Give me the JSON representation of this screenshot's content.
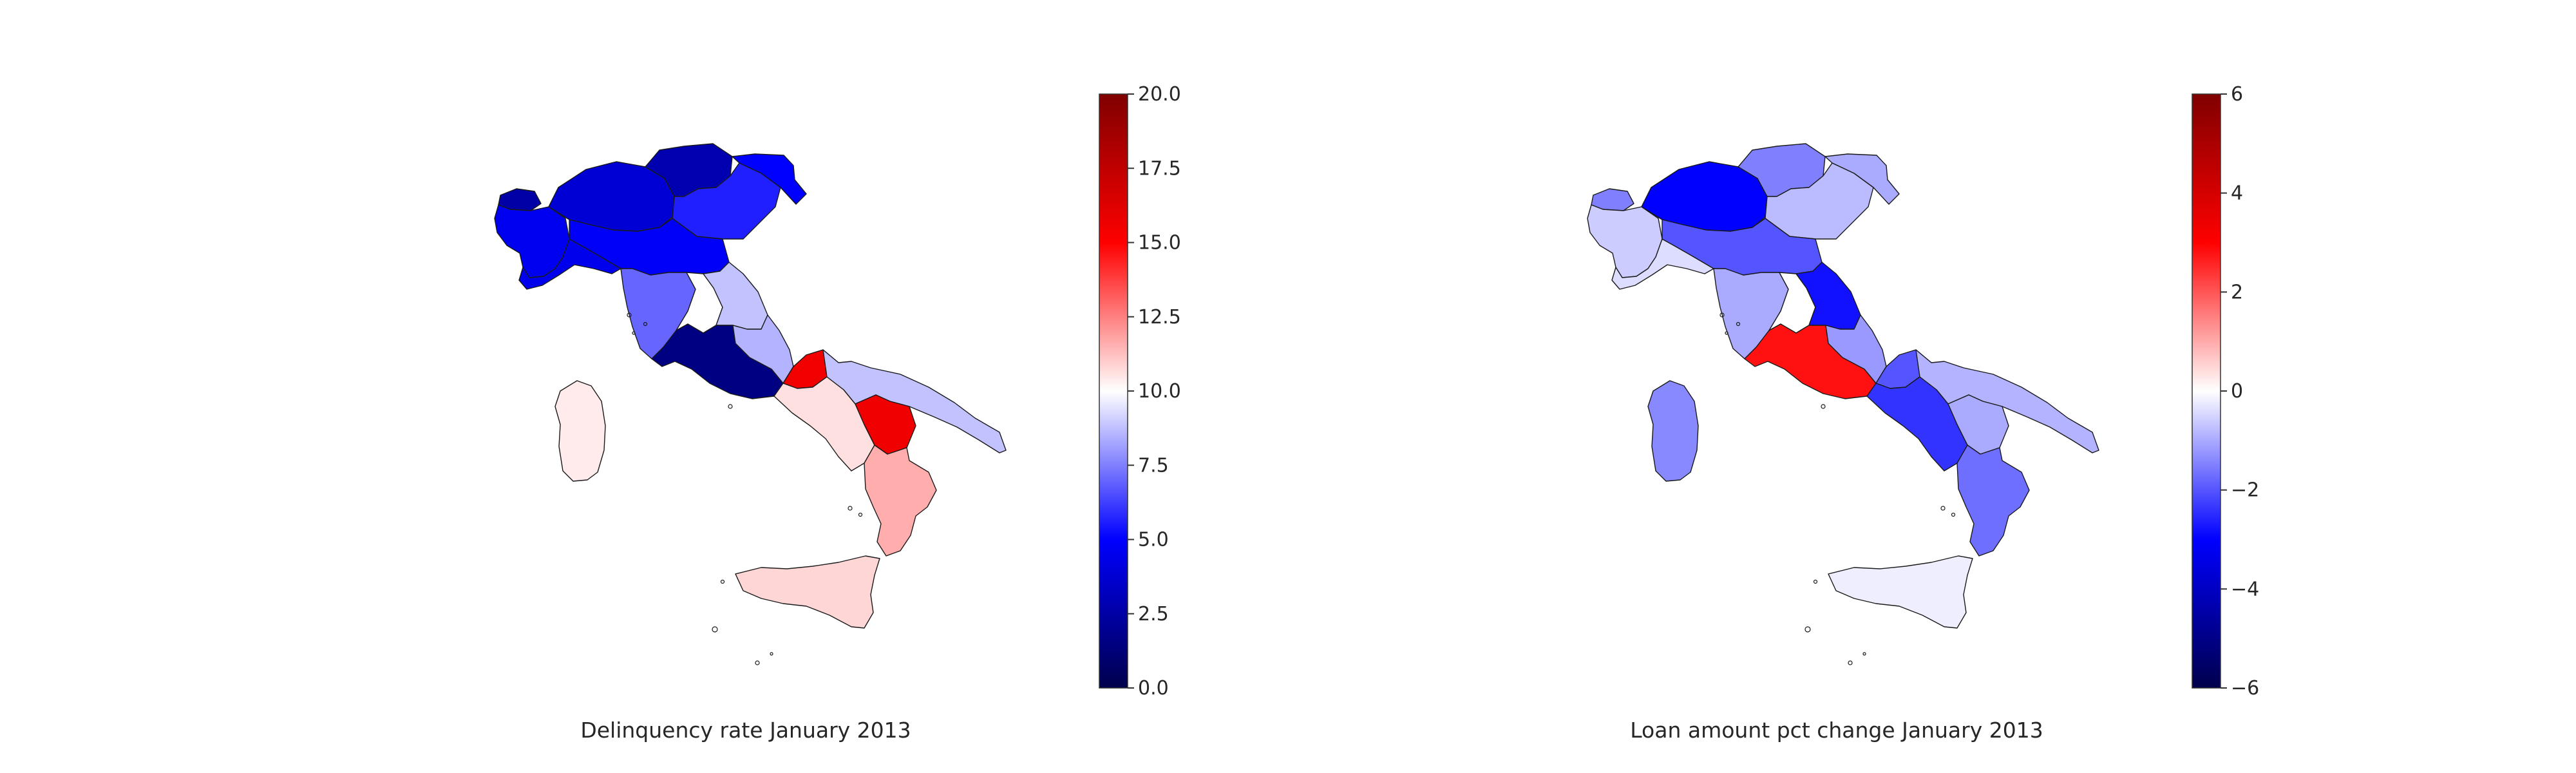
{
  "chart_data": [
    {
      "type": "choropleth",
      "title": "Delinquency rate January 2013",
      "colormap": "seismic",
      "colorbar": {
        "min": 0,
        "max": 20,
        "ticks": [
          0.0,
          2.5,
          5.0,
          7.5,
          10.0,
          12.5,
          15.0,
          17.5,
          20.0
        ],
        "tick_labels": [
          "0.0",
          "2.5",
          "5.0",
          "7.5",
          "10.0",
          "12.5",
          "15.0",
          "17.5",
          "20.0"
        ]
      },
      "regions": [
        {
          "name": "Valle d'Aosta",
          "value": 2.5
        },
        {
          "name": "Piemonte",
          "value": 4.6
        },
        {
          "name": "Lombardia",
          "value": 3.8
        },
        {
          "name": "Trentino-Alto Adige",
          "value": 2.8
        },
        {
          "name": "Veneto",
          "value": 5.6
        },
        {
          "name": "Friuli-Venezia Giulia",
          "value": 5.0
        },
        {
          "name": "Liguria",
          "value": 4.5
        },
        {
          "name": "Emilia-Romagna",
          "value": 4.8
        },
        {
          "name": "Toscana",
          "value": 7.0
        },
        {
          "name": "Umbria",
          "value": 10.0
        },
        {
          "name": "Marche",
          "value": 8.8
        },
        {
          "name": "Lazio",
          "value": 1.5
        },
        {
          "name": "Abruzzo",
          "value": 8.5
        },
        {
          "name": "Molise",
          "value": 15.5
        },
        {
          "name": "Campania",
          "value": 10.6
        },
        {
          "name": "Puglia",
          "value": 8.8
        },
        {
          "name": "Basilicata",
          "value": 15.6
        },
        {
          "name": "Calabria",
          "value": 11.6
        },
        {
          "name": "Sicilia",
          "value": 10.8
        },
        {
          "name": "Sardegna",
          "value": 10.4
        }
      ]
    },
    {
      "type": "choropleth",
      "title": "Loan amount pct change January 2013",
      "colormap": "seismic",
      "colorbar": {
        "min": -6,
        "max": 6,
        "ticks": [
          -6,
          -4,
          -2,
          0,
          2,
          4,
          6
        ],
        "tick_labels": [
          "−6",
          "−4",
          "−2",
          "0",
          "2",
          "4",
          "6"
        ]
      },
      "regions": [
        {
          "name": "Valle d'Aosta",
          "value": -1.5
        },
        {
          "name": "Piemonte",
          "value": -0.6
        },
        {
          "name": "Lombardia",
          "value": -3.0
        },
        {
          "name": "Trentino-Alto Adige",
          "value": -1.5
        },
        {
          "name": "Veneto",
          "value": -0.8
        },
        {
          "name": "Friuli-Venezia Giulia",
          "value": -1.0
        },
        {
          "name": "Liguria",
          "value": -0.4
        },
        {
          "name": "Emilia-Romagna",
          "value": -2.0
        },
        {
          "name": "Toscana",
          "value": -1.0
        },
        {
          "name": "Umbria",
          "value": 0.0
        },
        {
          "name": "Marche",
          "value": -2.8
        },
        {
          "name": "Lazio",
          "value": 2.8
        },
        {
          "name": "Abruzzo",
          "value": -1.2
        },
        {
          "name": "Molise",
          "value": -2.0
        },
        {
          "name": "Campania",
          "value": -2.4
        },
        {
          "name": "Puglia",
          "value": -0.9
        },
        {
          "name": "Basilicata",
          "value": -1.0
        },
        {
          "name": "Calabria",
          "value": -1.7
        },
        {
          "name": "Sicilia",
          "value": -0.2
        },
        {
          "name": "Sardegna",
          "value": -1.4
        }
      ]
    }
  ]
}
